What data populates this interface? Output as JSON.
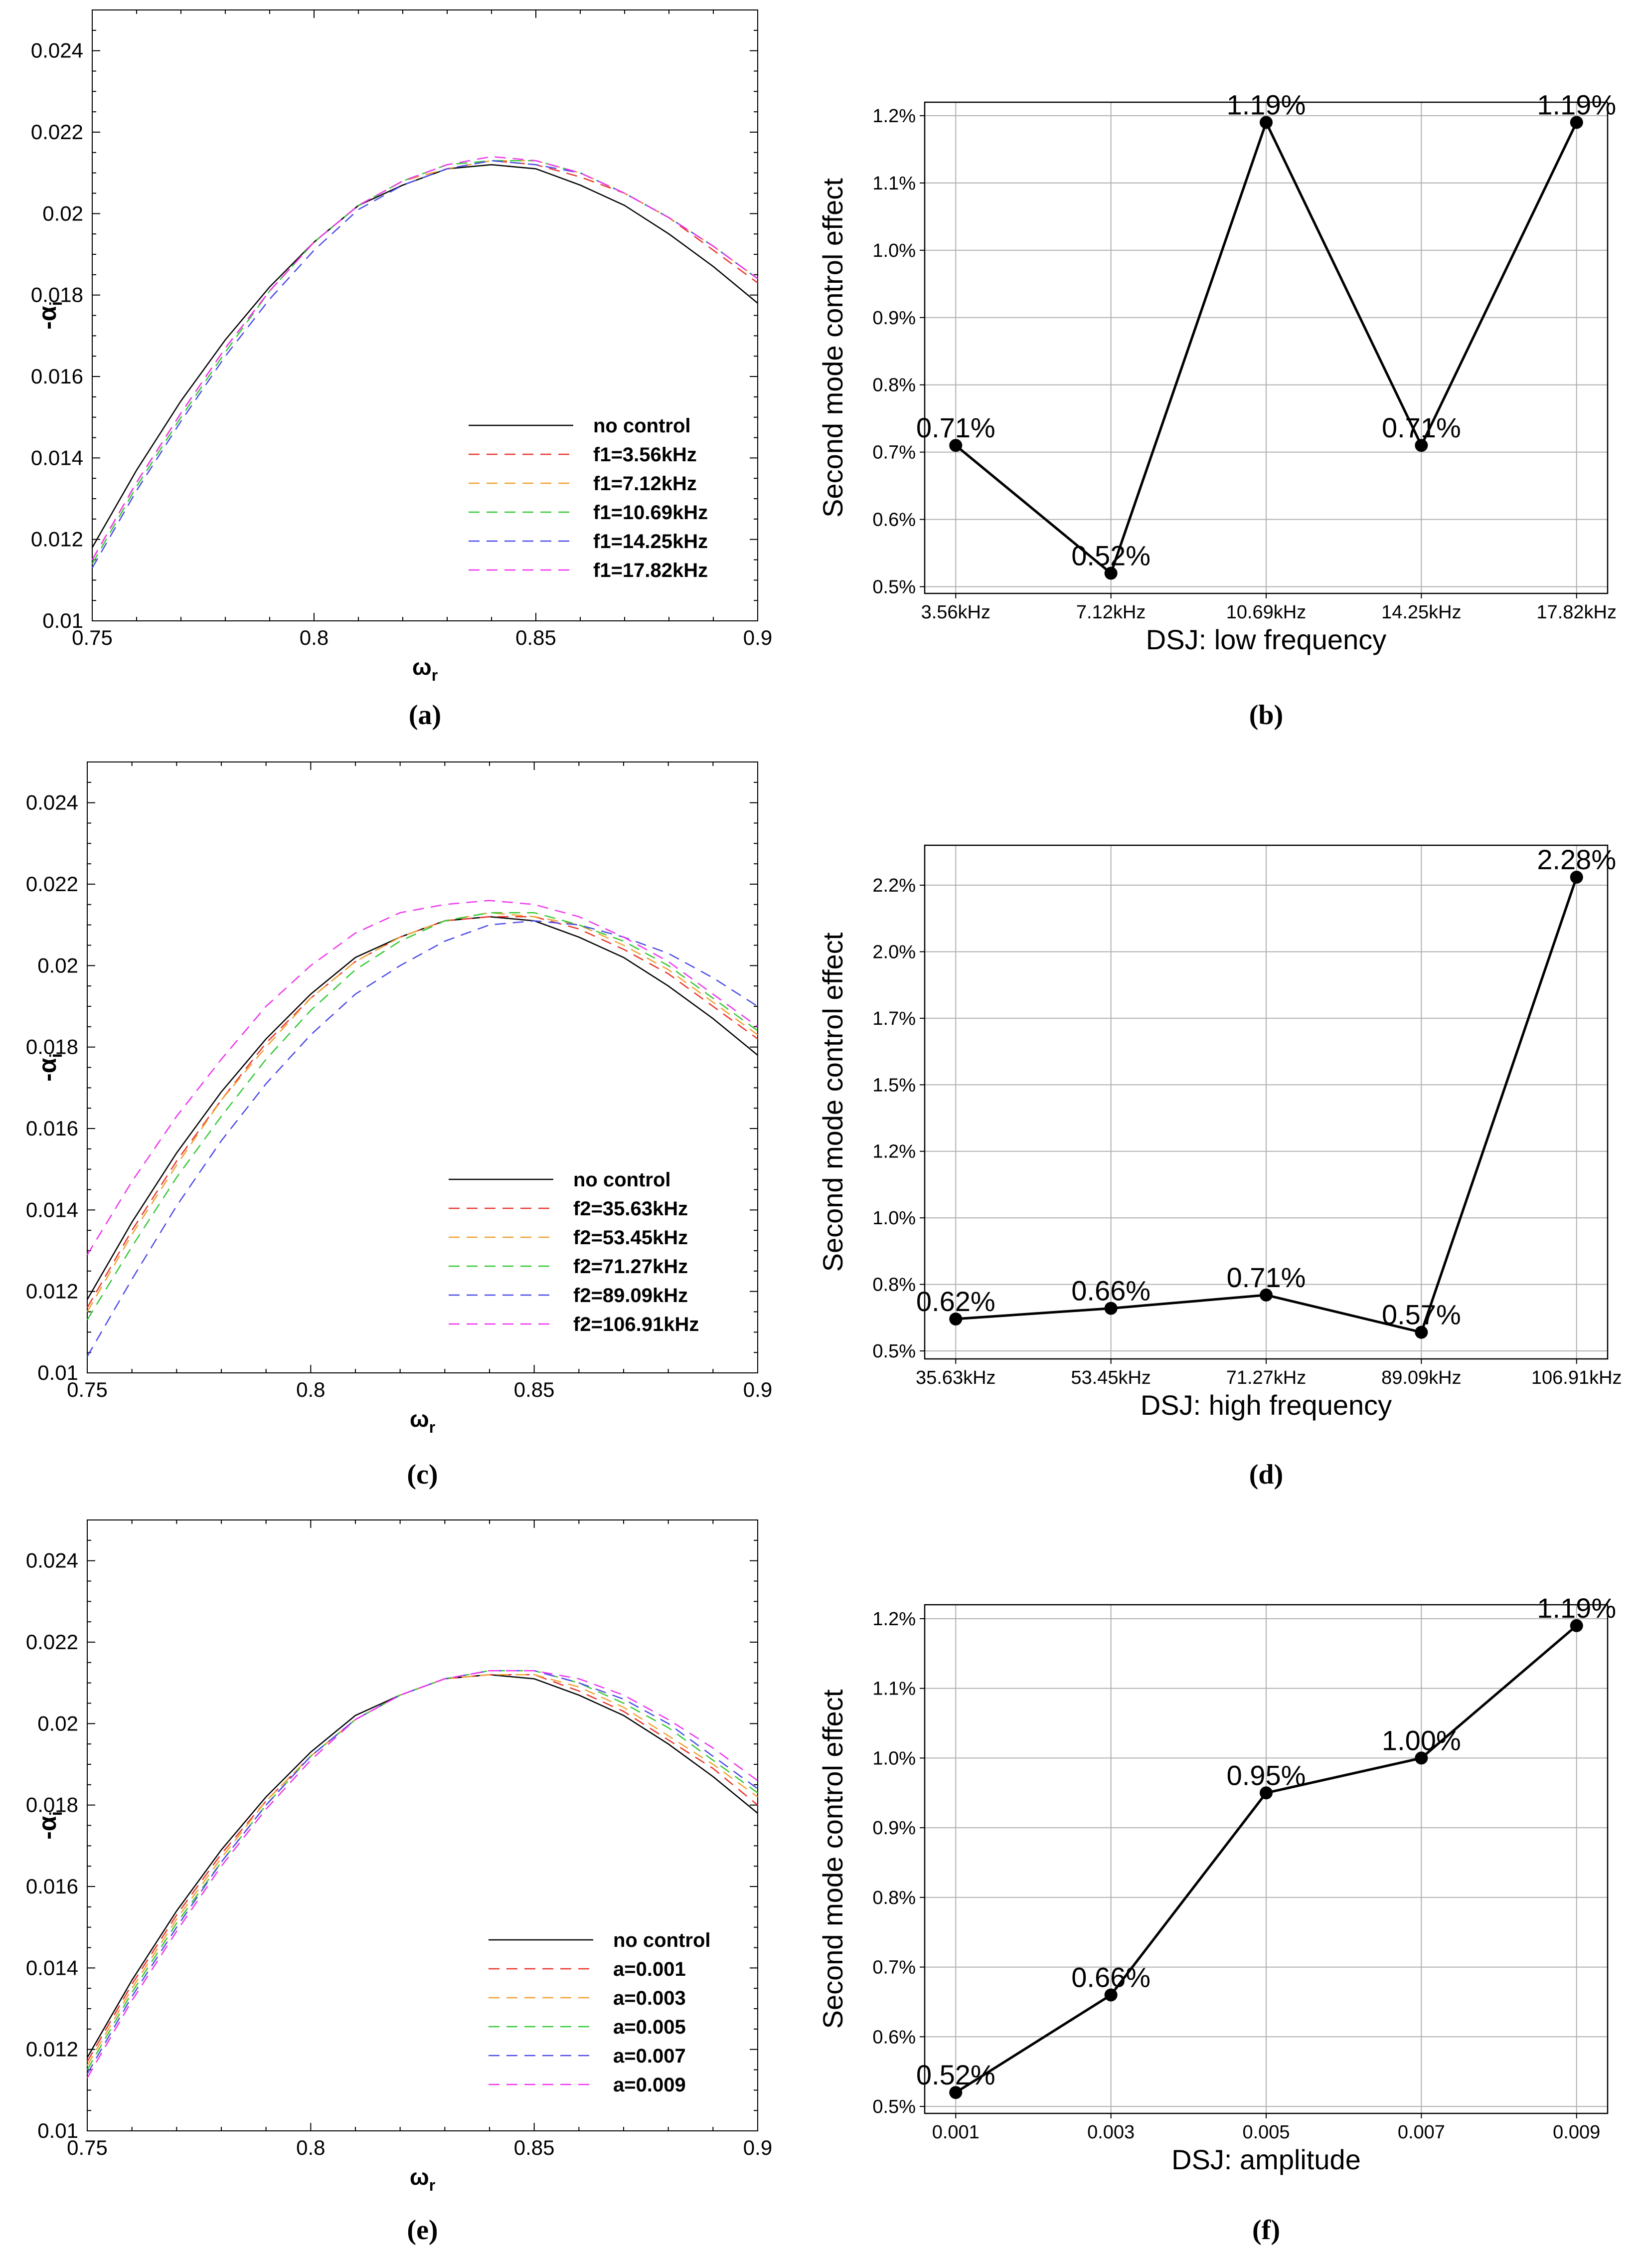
{
  "colors": {
    "red": "#e8332a",
    "orange": "#f0a030",
    "green": "#33c833",
    "blue": "#4a4ae8",
    "magenta": "#ee33ee",
    "black": "#000000",
    "grid": "#b0b0b0"
  },
  "chart_data": [
    {
      "id": "a",
      "type": "line",
      "caption": "(a)",
      "xlabel": "ω",
      "xlabel_sub": "r",
      "ylabel": "-α",
      "ylabel_sub": "i",
      "xlim": [
        0.75,
        0.9
      ],
      "ylim": [
        0.01,
        0.025
      ],
      "xticks": [
        "0.75",
        "0.8",
        "0.85",
        "0.9"
      ],
      "yticks": [
        "0.01",
        "0.012",
        "0.014",
        "0.016",
        "0.018",
        "0.02",
        "0.022",
        "0.024"
      ],
      "legend": [
        "no control",
        "f1=3.56kHz",
        "f1=7.12kHz",
        "f1=10.69kHz",
        "f1=14.25kHz",
        "f1=17.82kHz"
      ],
      "series": [
        {
          "name": "no control",
          "color": "black",
          "dash": false,
          "x": [
            0.75,
            0.76,
            0.77,
            0.78,
            0.79,
            0.8,
            0.81,
            0.82,
            0.83,
            0.84,
            0.85,
            0.86,
            0.87,
            0.88,
            0.89,
            0.9
          ],
          "y": [
            0.0118,
            0.0137,
            0.0154,
            0.0169,
            0.0182,
            0.0193,
            0.0202,
            0.0207,
            0.0211,
            0.0212,
            0.0211,
            0.0207,
            0.0202,
            0.0195,
            0.0187,
            0.0178
          ]
        },
        {
          "name": "f1=3.56kHz",
          "color": "red",
          "dash": true,
          "x": [
            0.75,
            0.76,
            0.77,
            0.78,
            0.79,
            0.8,
            0.81,
            0.82,
            0.83,
            0.84,
            0.85,
            0.86,
            0.87,
            0.88,
            0.89,
            0.9
          ],
          "y": [
            0.0115,
            0.0134,
            0.0151,
            0.0167,
            0.0181,
            0.0193,
            0.0202,
            0.0208,
            0.0211,
            0.0213,
            0.0212,
            0.0209,
            0.0205,
            0.0199,
            0.0191,
            0.0183
          ]
        },
        {
          "name": "f1=7.12kHz",
          "color": "orange",
          "dash": true,
          "x": [
            0.75,
            0.76,
            0.77,
            0.78,
            0.79,
            0.8,
            0.81,
            0.82,
            0.83,
            0.84,
            0.85,
            0.86,
            0.87,
            0.88,
            0.89,
            0.9
          ],
          "y": [
            0.0115,
            0.0134,
            0.0151,
            0.0167,
            0.0181,
            0.0193,
            0.0202,
            0.0208,
            0.0211,
            0.0213,
            0.0213,
            0.021,
            0.0205,
            0.0199,
            0.0192,
            0.0184
          ]
        },
        {
          "name": "f1=10.69kHz",
          "color": "green",
          "dash": true,
          "x": [
            0.75,
            0.76,
            0.77,
            0.78,
            0.79,
            0.8,
            0.81,
            0.82,
            0.83,
            0.84,
            0.85,
            0.86,
            0.87,
            0.88,
            0.89,
            0.9
          ],
          "y": [
            0.0114,
            0.0133,
            0.015,
            0.0166,
            0.0181,
            0.0193,
            0.0202,
            0.0208,
            0.0212,
            0.0213,
            0.0213,
            0.021,
            0.0205,
            0.0199,
            0.0192,
            0.0184
          ]
        },
        {
          "name": "f1=14.25kHz",
          "color": "blue",
          "dash": true,
          "x": [
            0.75,
            0.76,
            0.77,
            0.78,
            0.79,
            0.8,
            0.81,
            0.82,
            0.83,
            0.84,
            0.85,
            0.86,
            0.87,
            0.88,
            0.89,
            0.9
          ],
          "y": [
            0.0113,
            0.0132,
            0.0149,
            0.0165,
            0.0179,
            0.0191,
            0.0201,
            0.0207,
            0.0211,
            0.0213,
            0.0212,
            0.021,
            0.0205,
            0.0199,
            0.0192,
            0.0184
          ]
        },
        {
          "name": "f1=17.82kHz",
          "color": "magenta",
          "dash": true,
          "x": [
            0.75,
            0.76,
            0.77,
            0.78,
            0.79,
            0.8,
            0.81,
            0.82,
            0.83,
            0.84,
            0.85,
            0.86,
            0.87,
            0.88,
            0.89,
            0.9
          ],
          "y": [
            0.0115,
            0.0134,
            0.0151,
            0.0167,
            0.0181,
            0.0193,
            0.0202,
            0.0208,
            0.0212,
            0.0214,
            0.0213,
            0.021,
            0.0205,
            0.0199,
            0.0192,
            0.0184
          ]
        }
      ]
    },
    {
      "id": "b",
      "type": "line",
      "caption": "(b)",
      "xlabel": "DSJ: low frequency",
      "ylabel": "Second mode control effect",
      "categories": [
        "3.56kHz",
        "7.12kHz",
        "10.69kHz",
        "14.25kHz",
        "17.82kHz"
      ],
      "values": [
        0.71,
        0.52,
        1.19,
        0.71,
        1.19
      ],
      "labels": [
        "0.71%",
        "0.52%",
        "1.19%",
        "0.71%",
        "1.19%"
      ],
      "ylim": [
        0.49,
        1.22
      ],
      "yticks": [
        0.5,
        0.6,
        0.7,
        0.8,
        0.9,
        1.0,
        1.1,
        1.2
      ],
      "ytick_labels": [
        "0.5%",
        "0.6%",
        "0.7%",
        "0.8%",
        "0.9%",
        "1.0%",
        "1.1%",
        "1.2%"
      ],
      "grid": true
    },
    {
      "id": "c",
      "type": "line",
      "caption": "(c)",
      "xlabel": "ω",
      "xlabel_sub": "r",
      "ylabel": "-α",
      "ylabel_sub": "i",
      "xlim": [
        0.75,
        0.9
      ],
      "ylim": [
        0.01,
        0.025
      ],
      "xticks": [
        "0.75",
        "0.8",
        "0.85",
        "0.9"
      ],
      "yticks": [
        "0.01",
        "0.012",
        "0.014",
        "0.016",
        "0.018",
        "0.02",
        "0.022",
        "0.024"
      ],
      "legend": [
        "no control",
        "f2=35.63kHz",
        "f2=53.45kHz",
        "f2=71.27kHz",
        "f2=89.09kHz",
        "f2=106.91kHz"
      ],
      "series": [
        {
          "name": "no control",
          "color": "black",
          "dash": false,
          "x": [
            0.75,
            0.76,
            0.77,
            0.78,
            0.79,
            0.8,
            0.81,
            0.82,
            0.83,
            0.84,
            0.85,
            0.86,
            0.87,
            0.88,
            0.89,
            0.9
          ],
          "y": [
            0.0118,
            0.0137,
            0.0154,
            0.0169,
            0.0182,
            0.0193,
            0.0202,
            0.0207,
            0.0211,
            0.0212,
            0.0211,
            0.0207,
            0.0202,
            0.0195,
            0.0187,
            0.0178
          ]
        },
        {
          "name": "f2=35.63kHz",
          "color": "red",
          "dash": true,
          "x": [
            0.75,
            0.76,
            0.77,
            0.78,
            0.79,
            0.8,
            0.81,
            0.82,
            0.83,
            0.84,
            0.85,
            0.86,
            0.87,
            0.88,
            0.89,
            0.9
          ],
          "y": [
            0.0116,
            0.0135,
            0.0152,
            0.0167,
            0.0181,
            0.0192,
            0.0201,
            0.0207,
            0.0211,
            0.0212,
            0.0212,
            0.0209,
            0.0204,
            0.0198,
            0.019,
            0.0182
          ]
        },
        {
          "name": "f2=53.45kHz",
          "color": "orange",
          "dash": true,
          "x": [
            0.75,
            0.76,
            0.77,
            0.78,
            0.79,
            0.8,
            0.81,
            0.82,
            0.83,
            0.84,
            0.85,
            0.86,
            0.87,
            0.88,
            0.89,
            0.9
          ],
          "y": [
            0.0115,
            0.0134,
            0.0151,
            0.0167,
            0.018,
            0.0192,
            0.0201,
            0.0207,
            0.0211,
            0.0213,
            0.0212,
            0.021,
            0.0205,
            0.0199,
            0.0191,
            0.0183
          ]
        },
        {
          "name": "f2=71.27kHz",
          "color": "green",
          "dash": true,
          "x": [
            0.75,
            0.76,
            0.77,
            0.78,
            0.79,
            0.8,
            0.81,
            0.82,
            0.83,
            0.84,
            0.85,
            0.86,
            0.87,
            0.88,
            0.89,
            0.9
          ],
          "y": [
            0.0113,
            0.0131,
            0.0148,
            0.0163,
            0.0177,
            0.0189,
            0.0199,
            0.0206,
            0.0211,
            0.0213,
            0.0213,
            0.021,
            0.0206,
            0.02,
            0.0192,
            0.0184
          ]
        },
        {
          "name": "f2=89.09kHz",
          "color": "blue",
          "dash": true,
          "x": [
            0.75,
            0.76,
            0.77,
            0.78,
            0.79,
            0.8,
            0.81,
            0.82,
            0.83,
            0.84,
            0.85,
            0.86,
            0.87,
            0.88,
            0.89,
            0.9
          ],
          "y": [
            0.0104,
            0.0123,
            0.0141,
            0.0157,
            0.0171,
            0.0183,
            0.0193,
            0.02,
            0.0206,
            0.021,
            0.0211,
            0.021,
            0.0207,
            0.0203,
            0.0197,
            0.019
          ]
        },
        {
          "name": "f2=106.91kHz",
          "color": "magenta",
          "dash": true,
          "x": [
            0.75,
            0.76,
            0.77,
            0.78,
            0.79,
            0.8,
            0.81,
            0.82,
            0.83,
            0.84,
            0.85,
            0.86,
            0.87,
            0.88,
            0.89,
            0.9
          ],
          "y": [
            0.0129,
            0.0147,
            0.0163,
            0.0177,
            0.019,
            0.02,
            0.0208,
            0.0213,
            0.0215,
            0.0216,
            0.0215,
            0.0212,
            0.0207,
            0.0201,
            0.0193,
            0.0185
          ]
        }
      ]
    },
    {
      "id": "d",
      "type": "line",
      "caption": "(d)",
      "xlabel": "DSJ: high frequency",
      "ylabel": "Second mode control effect",
      "categories": [
        "35.63kHz",
        "53.45kHz",
        "71.27kHz",
        "89.09kHz",
        "106.91kHz"
      ],
      "values": [
        0.62,
        0.66,
        0.71,
        0.57,
        2.28
      ],
      "labels": [
        "0.62%",
        "0.66%",
        "0.71%",
        "0.57%",
        "2.28%"
      ],
      "ylim": [
        0.47,
        2.4
      ],
      "yticks": [
        0.5,
        0.75,
        1.0,
        1.25,
        1.5,
        1.75,
        2.0,
        2.25
      ],
      "ytick_labels": [
        "0.5%",
        "0.8%",
        "1.0%",
        "1.2%",
        "1.5%",
        "1.7%",
        "2.0%",
        "2.2%"
      ],
      "grid": true
    },
    {
      "id": "e",
      "type": "line",
      "caption": "(e)",
      "xlabel": "ω",
      "xlabel_sub": "r",
      "ylabel": "-α",
      "ylabel_sub": "i",
      "xlim": [
        0.75,
        0.9
      ],
      "ylim": [
        0.01,
        0.025
      ],
      "xticks": [
        "0.75",
        "0.8",
        "0.85",
        "0.9"
      ],
      "yticks": [
        "0.01",
        "0.012",
        "0.014",
        "0.016",
        "0.018",
        "0.02",
        "0.022",
        "0.024"
      ],
      "legend": [
        "no control",
        "a=0.001",
        "a=0.003",
        "a=0.005",
        "a=0.007",
        "a=0.009"
      ],
      "series": [
        {
          "name": "no control",
          "color": "black",
          "dash": false,
          "x": [
            0.75,
            0.76,
            0.77,
            0.78,
            0.79,
            0.8,
            0.81,
            0.82,
            0.83,
            0.84,
            0.85,
            0.86,
            0.87,
            0.88,
            0.89,
            0.9
          ],
          "y": [
            0.0118,
            0.0137,
            0.0154,
            0.0169,
            0.0182,
            0.0193,
            0.0202,
            0.0207,
            0.0211,
            0.0212,
            0.0211,
            0.0207,
            0.0202,
            0.0195,
            0.0187,
            0.0178
          ]
        },
        {
          "name": "a=0.001",
          "color": "red",
          "dash": true,
          "x": [
            0.75,
            0.76,
            0.77,
            0.78,
            0.79,
            0.8,
            0.81,
            0.82,
            0.83,
            0.84,
            0.85,
            0.86,
            0.87,
            0.88,
            0.89,
            0.9
          ],
          "y": [
            0.0117,
            0.0136,
            0.0153,
            0.0168,
            0.0181,
            0.0192,
            0.0201,
            0.0207,
            0.0211,
            0.0212,
            0.0212,
            0.0208,
            0.0203,
            0.0196,
            0.0189,
            0.018
          ]
        },
        {
          "name": "a=0.003",
          "color": "orange",
          "dash": true,
          "x": [
            0.75,
            0.76,
            0.77,
            0.78,
            0.79,
            0.8,
            0.81,
            0.82,
            0.83,
            0.84,
            0.85,
            0.86,
            0.87,
            0.88,
            0.89,
            0.9
          ],
          "y": [
            0.0116,
            0.0135,
            0.0152,
            0.0167,
            0.0181,
            0.0192,
            0.0201,
            0.0207,
            0.0211,
            0.0212,
            0.0212,
            0.0209,
            0.0204,
            0.0197,
            0.019,
            0.0182
          ]
        },
        {
          "name": "a=0.005",
          "color": "green",
          "dash": true,
          "x": [
            0.75,
            0.76,
            0.77,
            0.78,
            0.79,
            0.8,
            0.81,
            0.82,
            0.83,
            0.84,
            0.85,
            0.86,
            0.87,
            0.88,
            0.89,
            0.9
          ],
          "y": [
            0.0115,
            0.0134,
            0.0151,
            0.0166,
            0.018,
            0.0192,
            0.0201,
            0.0207,
            0.0211,
            0.0213,
            0.0213,
            0.021,
            0.0205,
            0.0199,
            0.0191,
            0.0183
          ]
        },
        {
          "name": "a=0.007",
          "color": "blue",
          "dash": true,
          "x": [
            0.75,
            0.76,
            0.77,
            0.78,
            0.79,
            0.8,
            0.81,
            0.82,
            0.83,
            0.84,
            0.85,
            0.86,
            0.87,
            0.88,
            0.89,
            0.9
          ],
          "y": [
            0.0114,
            0.0133,
            0.015,
            0.0166,
            0.018,
            0.0192,
            0.0201,
            0.0207,
            0.0211,
            0.0213,
            0.0213,
            0.021,
            0.0206,
            0.02,
            0.0192,
            0.0184
          ]
        },
        {
          "name": "a=0.009",
          "color": "magenta",
          "dash": true,
          "x": [
            0.75,
            0.76,
            0.77,
            0.78,
            0.79,
            0.8,
            0.81,
            0.82,
            0.83,
            0.84,
            0.85,
            0.86,
            0.87,
            0.88,
            0.89,
            0.9
          ],
          "y": [
            0.0113,
            0.0132,
            0.0149,
            0.0165,
            0.0179,
            0.0191,
            0.0201,
            0.0207,
            0.0211,
            0.0213,
            0.0213,
            0.0211,
            0.0207,
            0.0201,
            0.0194,
            0.0186
          ]
        }
      ]
    },
    {
      "id": "f",
      "type": "line",
      "caption": "(f)",
      "xlabel": "DSJ: amplitude",
      "ylabel": "Second mode control effect",
      "categories": [
        "0.001",
        "0.003",
        "0.005",
        "0.007",
        "0.009"
      ],
      "values": [
        0.52,
        0.66,
        0.95,
        1.0,
        1.19
      ],
      "labels": [
        "0.52%",
        "0.66%",
        "0.95%",
        "1.00%",
        "1.19%"
      ],
      "ylim": [
        0.49,
        1.22
      ],
      "yticks": [
        0.5,
        0.6,
        0.7,
        0.8,
        0.9,
        1.0,
        1.1,
        1.2
      ],
      "ytick_labels": [
        "0.5%",
        "0.6%",
        "0.7%",
        "0.8%",
        "0.9%",
        "1.0%",
        "1.1%",
        "1.2%"
      ],
      "grid": true
    }
  ]
}
